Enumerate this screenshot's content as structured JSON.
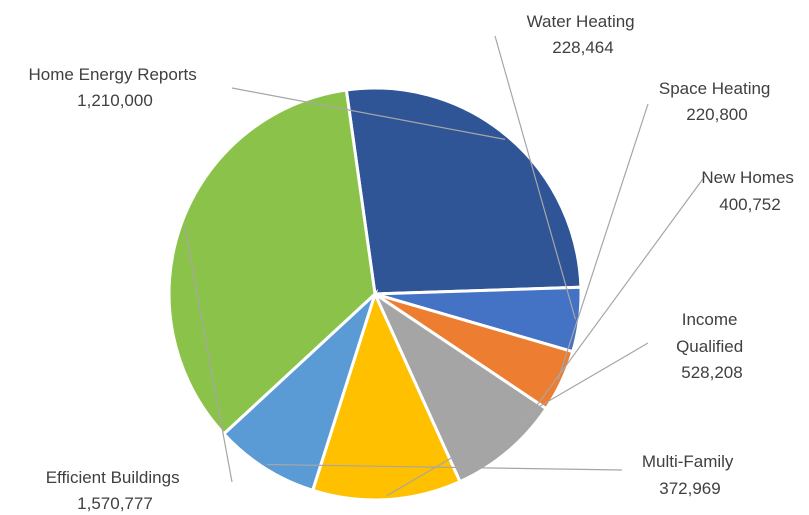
{
  "chart_data": {
    "type": "pie",
    "title": "",
    "slices": [
      {
        "name": "Home Energy Reports",
        "value": 1210000,
        "value_label": "1,210,000",
        "color": "#2f5597"
      },
      {
        "name": "Water Heating",
        "value": 228464,
        "value_label": "228,464",
        "color": "#4472c4"
      },
      {
        "name": "Space Heating",
        "value": 220800,
        "value_label": "220,800",
        "color": "#ed7d31"
      },
      {
        "name": "New Homes",
        "value": 400752,
        "value_label": "400,752",
        "color": "#a5a5a5"
      },
      {
        "name": "Income Qualified",
        "value": 528208,
        "value_label": "528,208",
        "color": "#ffc000"
      },
      {
        "name": "Multi-Family",
        "value": 372969,
        "value_label": "372,969",
        "color": "#5b9bd5"
      },
      {
        "name": "Efficient Buildings",
        "value": 1570777,
        "value_label": "1,570,777",
        "color": "#8bc34a"
      }
    ],
    "labels_outside": true,
    "leader_lines": true
  }
}
